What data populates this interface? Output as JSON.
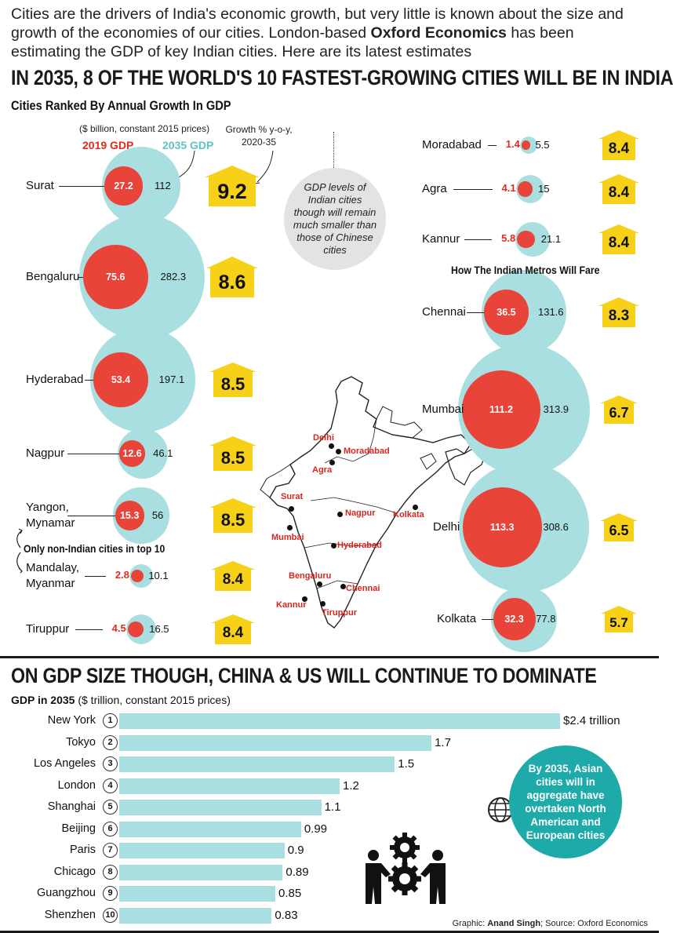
{
  "intro": {
    "part1": "Cities are the drivers of India's economic growth, but very little is known about the size and growth of the economies of our cities. London-based ",
    "bold": "Oxford Economics",
    "part2": " has been estimating the GDP of key Indian cities. Here are its latest estimates"
  },
  "headline1": "IN 2035, 8 OF THE WORLD'S 10 FASTEST-GROWING CITIES WILL BE IN INDIA",
  "subtitle1": "Cities Ranked By Annual Growth In GDP",
  "legend": {
    "units": "($ billion, constant 2015 prices)",
    "gdp2019": "2019 GDP",
    "gdp2035": "2035 GDP",
    "growth": "Growth % y-o-y, 2020-35"
  },
  "grey_note": "GDP levels of Indian cities though will remain much smaller than those of Chinese cities",
  "metros_title": "How The Indian Metros Will Fare",
  "non_indian_note": "Only non-Indian cities in top 10",
  "colors": {
    "gdp2019": "#e8443a",
    "gdp2035": "#a9dfe0",
    "badge": "#f7d117",
    "teal": "#1eaaa8"
  },
  "map_cities": [
    "Delhi",
    "Moradabad",
    "Agra",
    "Surat",
    "Nagpur",
    "Kolkata",
    "Mumbai",
    "Hyderabad",
    "Bengaluru",
    "Chennai",
    "Kannur",
    "Tiruppur"
  ],
  "chart_data": [
    {
      "type": "bubble",
      "title": "Cities Ranked By Annual Growth In GDP",
      "units": "$ billion, constant 2015 prices",
      "series_names": [
        "2019 GDP",
        "2035 GDP",
        "Growth % y-o-y, 2020-35"
      ],
      "cities": [
        {
          "name": "Surat",
          "gdp2019": "27.2",
          "gdp2035": "112",
          "growth": "9.2"
        },
        {
          "name": "Bengaluru",
          "gdp2019": "75.6",
          "gdp2035": "282.3",
          "growth": "8.6"
        },
        {
          "name": "Hyderabad",
          "gdp2019": "53.4",
          "gdp2035": "197.1",
          "growth": "8.5"
        },
        {
          "name": "Nagpur",
          "gdp2019": "12.6",
          "gdp2035": "46.1",
          "growth": "8.5"
        },
        {
          "name": "Yangon, Mynamar",
          "gdp2019": "15.3",
          "gdp2035": "56",
          "growth": "8.5"
        },
        {
          "name": "Mandalay, Myanmar",
          "gdp2019": "2.8",
          "gdp2035": "10.1",
          "growth": "8.4"
        },
        {
          "name": "Tiruppur",
          "gdp2019": "4.5",
          "gdp2035": "16.5",
          "growth": "8.4"
        },
        {
          "name": "Moradabad",
          "gdp2019": "1.4",
          "gdp2035": "5.5",
          "growth": "8.4"
        },
        {
          "name": "Agra",
          "gdp2019": "4.1",
          "gdp2035": "15",
          "growth": "8.4"
        },
        {
          "name": "Kannur",
          "gdp2019": "5.8",
          "gdp2035": "21.1",
          "growth": "8.4"
        }
      ],
      "metros": [
        {
          "name": "Chennai",
          "gdp2019": "36.5",
          "gdp2035": "131.6",
          "growth": "8.3"
        },
        {
          "name": "Mumbai",
          "gdp2019": "111.2",
          "gdp2035": "313.9",
          "growth": "6.7"
        },
        {
          "name": "Delhi",
          "gdp2019": "113.3",
          "gdp2035": "308.6",
          "growth": "6.5"
        },
        {
          "name": "Kolkata",
          "gdp2019": "32.3",
          "gdp2035": "77.8",
          "growth": "5.7"
        }
      ]
    },
    {
      "type": "bar",
      "title": "ON GDP SIZE THOUGH, CHINA & US WILL CONTINUE TO DOMINATE",
      "subtitle_bold": "GDP in 2035",
      "subtitle_rest": " ($ trillion, constant 2015 prices)",
      "categories": [
        "New York",
        "Tokyo",
        "Los Angeles",
        "London",
        "Shanghai",
        "Beijing",
        "Paris",
        "Chicago",
        "Guangzhou",
        "Shenzhen"
      ],
      "ranks": [
        "1",
        "2",
        "3",
        "4",
        "5",
        "6",
        "7",
        "8",
        "9",
        "10"
      ],
      "values": [
        2.4,
        1.7,
        1.5,
        1.2,
        1.1,
        0.99,
        0.9,
        0.89,
        0.85,
        0.83
      ],
      "labels": [
        "$2.4 trillion",
        "1.7",
        "1.5",
        "1.2",
        "1.1",
        "0.99",
        "0.9",
        "0.89",
        "0.85",
        "0.83"
      ]
    }
  ],
  "teal_note": "By 2035, Asian cities will in aggregate have overtaken North American and European cities",
  "credit": {
    "graphic_label": "Graphic: ",
    "graphic_name": "Anand Singh",
    "source": "; Source: Oxford Economics"
  }
}
